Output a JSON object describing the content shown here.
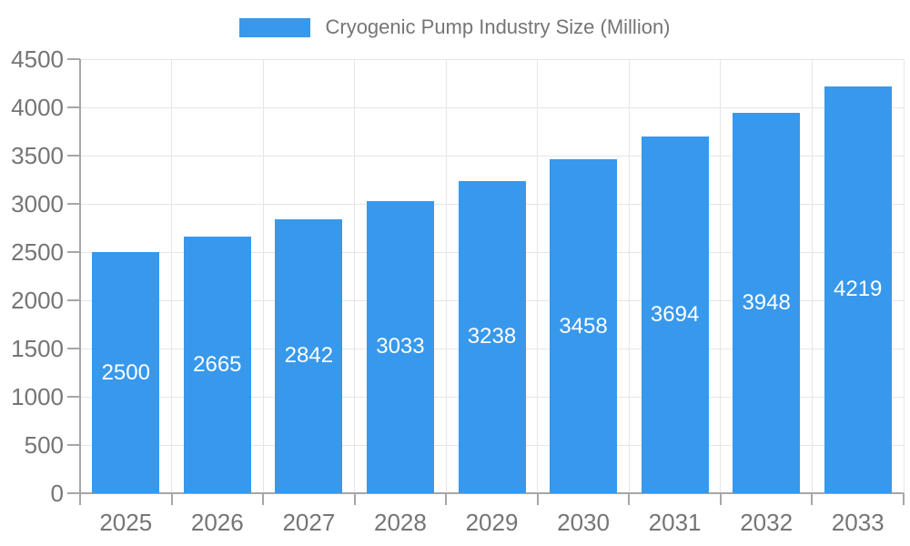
{
  "legend": {
    "swatch_color": "#3898ec"
  },
  "chart_data": {
    "type": "bar",
    "title": "Cryogenic Pump Industry Size (Million)",
    "categories": [
      "2025",
      "2026",
      "2027",
      "2028",
      "2029",
      "2030",
      "2031",
      "2032",
      "2033"
    ],
    "values": [
      2500,
      2665,
      2842,
      3033,
      3238,
      3458,
      3694,
      3948,
      4219
    ],
    "xlabel": "",
    "ylabel": "",
    "ylim": [
      0,
      4500
    ],
    "ytick_step": 500,
    "ytick_labels": [
      "0",
      "500",
      "1000",
      "1500",
      "2000",
      "2500",
      "3000",
      "3500",
      "4000",
      "4500"
    ],
    "grid": true,
    "legend_position": "top-center",
    "colors": {
      "bar": "#3898ec",
      "bar_label": "#ffffff",
      "axis_text": "#757575",
      "grid_line": "#e6e6e6",
      "axis_line": "#a6a6a6"
    }
  }
}
